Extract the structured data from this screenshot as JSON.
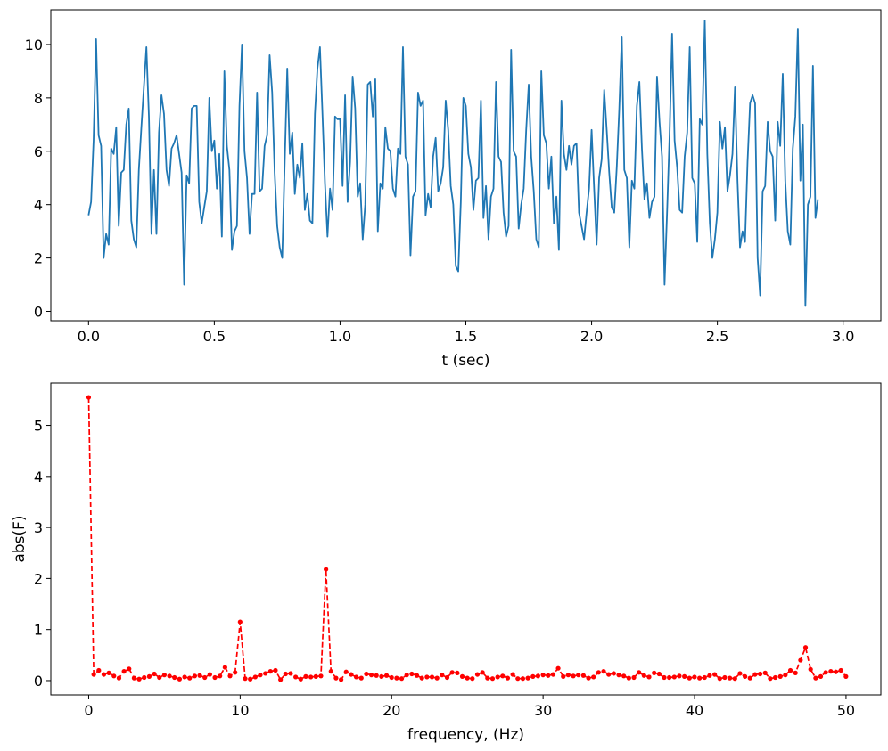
{
  "chart_data": [
    {
      "type": "line",
      "title": "",
      "xlabel": "t (sec)",
      "ylabel": "",
      "xlim": [
        -0.15,
        3.15
      ],
      "ylim": [
        -0.35,
        11.3
      ],
      "xticks": [
        0,
        0.5,
        1,
        1.5,
        2,
        2.5,
        3
      ],
      "xtick_labels": [
        "0.0",
        "0.5",
        "1.0",
        "1.5",
        "2.0",
        "2.5",
        "3.0"
      ],
      "yticks": [
        0,
        2,
        4,
        6,
        8,
        10
      ],
      "ytick_labels": [
        "0",
        "2",
        "4",
        "6",
        "8",
        "10"
      ],
      "grid": false,
      "series": [
        {
          "color": "#1f77b4",
          "x_start": 0,
          "x_step": 0.01,
          "values": [
            3.6,
            4.1,
            6.4,
            10.2,
            6.6,
            6.2,
            2.0,
            2.9,
            2.5,
            6.1,
            5.9,
            6.9,
            3.2,
            5.2,
            5.3,
            7.0,
            7.6,
            3.4,
            2.7,
            2.4,
            5.3,
            6.9,
            8.4,
            9.9,
            7.3,
            2.9,
            5.3,
            2.9,
            6.7,
            8.1,
            7.4,
            5.3,
            4.7,
            6.1,
            6.3,
            6.6,
            5.9,
            5.2,
            1.0,
            5.1,
            4.8,
            7.6,
            7.7,
            7.7,
            4.1,
            3.3,
            3.9,
            4.5,
            8.0,
            6.0,
            6.4,
            4.6,
            5.9,
            2.8,
            9.0,
            6.2,
            5.3,
            2.3,
            3.0,
            3.2,
            7.7,
            10.0,
            6.0,
            5.0,
            2.9,
            4.4,
            4.4,
            8.2,
            4.5,
            4.6,
            6.2,
            6.6,
            9.6,
            8.2,
            5.2,
            3.2,
            2.4,
            2.0,
            5.6,
            9.1,
            5.9,
            6.7,
            4.4,
            5.5,
            5.0,
            6.3,
            3.8,
            4.4,
            3.4,
            3.3,
            7.4,
            9.1,
            9.9,
            7.4,
            4.8,
            2.8,
            4.6,
            3.8,
            7.3,
            7.2,
            7.2,
            4.7,
            8.1,
            4.1,
            5.6,
            8.8,
            7.6,
            4.3,
            4.8,
            2.7,
            4.0,
            8.5,
            8.6,
            7.3,
            8.7,
            3.0,
            4.8,
            4.6,
            6.9,
            6.1,
            6.0,
            4.6,
            4.3,
            6.1,
            5.9,
            9.9,
            5.8,
            5.5,
            2.1,
            4.3,
            4.5,
            8.2,
            7.7,
            7.9,
            3.6,
            4.4,
            3.9,
            5.8,
            6.5,
            4.5,
            4.8,
            5.4,
            7.9,
            6.8,
            4.7,
            4.0,
            1.7,
            1.5,
            4.1,
            8.0,
            7.7,
            5.9,
            5.4,
            3.8,
            4.9,
            5.0,
            7.9,
            3.5,
            4.7,
            2.7,
            4.3,
            4.6,
            8.6,
            5.8,
            5.6,
            3.7,
            2.8,
            3.2,
            9.8,
            6.0,
            5.8,
            3.1,
            4.0,
            4.6,
            6.8,
            8.5,
            5.8,
            4.5,
            2.7,
            2.4,
            9.0,
            6.6,
            6.3,
            4.6,
            5.8,
            3.3,
            4.3,
            2.3,
            7.9,
            5.9,
            5.3,
            6.2,
            5.5,
            6.2,
            6.3,
            3.7,
            3.2,
            2.7,
            3.7,
            4.6,
            6.8,
            4.6,
            2.5,
            5.0,
            5.7,
            8.3,
            6.8,
            5.2,
            3.9,
            3.7,
            5.4,
            7.6,
            10.3,
            5.3,
            5.0,
            2.4,
            4.9,
            4.6,
            7.7,
            8.6,
            6.1,
            4.2,
            4.8,
            3.5,
            4.1,
            4.3,
            8.8,
            7.1,
            5.8,
            1.0,
            3.7,
            6.6,
            10.4,
            6.4,
            5.4,
            3.8,
            3.7,
            5.8,
            6.7,
            9.9,
            5.0,
            4.8,
            2.6,
            7.2,
            7.0,
            10.9,
            5.9,
            3.3,
            2.0,
            2.7,
            3.7,
            7.1,
            6.1,
            6.9,
            4.5,
            5.1,
            5.9,
            8.4,
            4.9,
            2.4,
            3.0,
            2.6,
            5.6,
            7.8,
            8.1,
            7.8,
            2.0,
            0.6,
            4.5,
            4.7,
            7.1,
            6.0,
            5.8,
            3.4,
            7.1,
            6.2,
            8.9,
            4.9,
            3.0,
            2.5,
            6.1,
            7.3,
            10.6,
            4.9,
            7.0,
            0.2,
            4.0,
            4.3,
            9.2,
            3.5,
            4.2
          ]
        }
      ]
    },
    {
      "type": "line",
      "title": "",
      "xlabel": "frequency, (Hz)",
      "ylabel": "abs(F)",
      "xlim": [
        -2.5,
        52.3
      ],
      "ylim": [
        -0.28,
        5.83
      ],
      "xticks": [
        0,
        10,
        20,
        30,
        40,
        50
      ],
      "xtick_labels": [
        "0",
        "10",
        "20",
        "30",
        "40",
        "50"
      ],
      "yticks": [
        0,
        1,
        2,
        3,
        4,
        5
      ],
      "ytick_labels": [
        "0",
        "1",
        "2",
        "3",
        "4",
        "5"
      ],
      "grid": false,
      "series": [
        {
          "color": "#ff0000",
          "line_style": "dashed",
          "marker": "dot",
          "x_start": 0,
          "x_step": 0.3333,
          "values": [
            5.55,
            0.12,
            0.2,
            0.12,
            0.15,
            0.09,
            0.05,
            0.18,
            0.23,
            0.05,
            0.03,
            0.06,
            0.08,
            0.13,
            0.06,
            0.11,
            0.09,
            0.06,
            0.03,
            0.07,
            0.05,
            0.09,
            0.1,
            0.06,
            0.12,
            0.06,
            0.09,
            0.26,
            0.09,
            0.16,
            1.15,
            0.04,
            0.03,
            0.07,
            0.11,
            0.14,
            0.18,
            0.2,
            0.02,
            0.13,
            0.14,
            0.07,
            0.03,
            0.08,
            0.07,
            0.08,
            0.09,
            2.18,
            0.18,
            0.05,
            0.02,
            0.17,
            0.12,
            0.07,
            0.05,
            0.13,
            0.11,
            0.1,
            0.08,
            0.1,
            0.06,
            0.05,
            0.04,
            0.11,
            0.13,
            0.1,
            0.05,
            0.07,
            0.07,
            0.05,
            0.11,
            0.06,
            0.16,
            0.15,
            0.08,
            0.05,
            0.04,
            0.12,
            0.16,
            0.05,
            0.04,
            0.07,
            0.09,
            0.05,
            0.12,
            0.04,
            0.04,
            0.05,
            0.08,
            0.09,
            0.11,
            0.1,
            0.12,
            0.24,
            0.08,
            0.11,
            0.09,
            0.11,
            0.1,
            0.05,
            0.07,
            0.16,
            0.18,
            0.12,
            0.14,
            0.11,
            0.09,
            0.05,
            0.06,
            0.16,
            0.1,
            0.07,
            0.15,
            0.13,
            0.06,
            0.06,
            0.07,
            0.09,
            0.08,
            0.05,
            0.07,
            0.05,
            0.06,
            0.1,
            0.12,
            0.04,
            0.06,
            0.05,
            0.04,
            0.14,
            0.08,
            0.05,
            0.12,
            0.13,
            0.15,
            0.04,
            0.06,
            0.08,
            0.11,
            0.2,
            0.15,
            0.4,
            0.65,
            0.22,
            0.05,
            0.08,
            0.16,
            0.18,
            0.17,
            0.2,
            0.08
          ]
        }
      ]
    }
  ]
}
